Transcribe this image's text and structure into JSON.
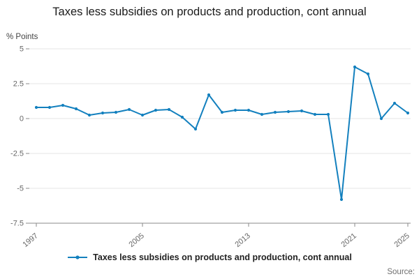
{
  "header": {
    "title": "Taxes less subsidies on products and production, cont annual"
  },
  "legend": {
    "label": "Taxes less subsidies on products and production, cont annual"
  },
  "source": {
    "label": "Source:"
  },
  "chart_data": {
    "type": "line",
    "title": "Taxes less subsidies on products and production, cont annual",
    "xlabel": "",
    "ylabel": "% Points",
    "ylim": [
      -7.5,
      5
    ],
    "grid": true,
    "legend_position": "bottom",
    "line_color": "#1380be",
    "grid_color": "#e4e4e4",
    "axis_color": "#8a8a8a",
    "tick_label_color": "#666666",
    "x": [
      1997,
      1998,
      1999,
      2000,
      2001,
      2002,
      2003,
      2004,
      2005,
      2006,
      2007,
      2008,
      2009,
      2010,
      2011,
      2012,
      2013,
      2014,
      2015,
      2016,
      2017,
      2018,
      2019,
      2020,
      2021,
      2022,
      2023,
      2024,
      2025
    ],
    "values": [
      0.8,
      0.8,
      0.95,
      0.7,
      0.25,
      0.4,
      0.45,
      0.65,
      0.25,
      0.6,
      0.65,
      0.1,
      -0.75,
      1.7,
      0.45,
      0.6,
      0.6,
      0.3,
      0.45,
      0.5,
      0.55,
      0.3,
      0.3,
      -5.8,
      3.7,
      3.2,
      0.0,
      1.1,
      0.4
    ],
    "y_ticks": [
      5,
      2.5,
      0,
      -2.5,
      -5,
      -7.5
    ],
    "y_tick_labels": [
      "5",
      "2.5",
      "0",
      "-2.5",
      "-5",
      "-7.5"
    ],
    "x_tick_years": [
      1997,
      2005,
      2013,
      2021,
      2025
    ],
    "x_tick_labels": [
      "1997",
      "2005",
      "2013",
      "2021",
      "2025"
    ]
  }
}
